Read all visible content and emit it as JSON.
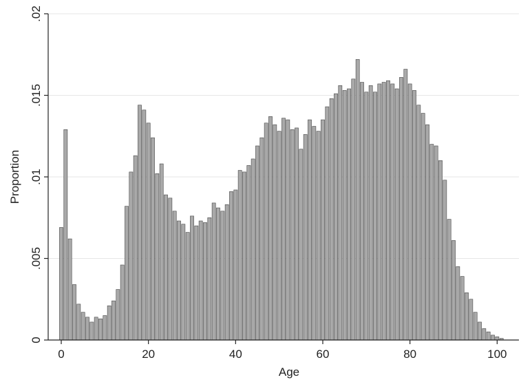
{
  "chart_data": {
    "type": "bar",
    "subtype": "histogram",
    "title": "",
    "xlabel": "Age",
    "ylabel": "Proportion",
    "xlim": [
      -3,
      105
    ],
    "ylim": [
      0,
      0.02
    ],
    "xticks": [
      0,
      20,
      40,
      60,
      80,
      100
    ],
    "xtick_labels": [
      "0",
      "20",
      "40",
      "60",
      "80",
      "100"
    ],
    "yticks": [
      0,
      0.005,
      0.01,
      0.015,
      0.02
    ],
    "ytick_labels": [
      "0",
      ".005",
      ".01",
      ".015",
      ".02"
    ],
    "grid": true,
    "bin_width": 1,
    "x": [
      0,
      1,
      2,
      3,
      4,
      5,
      6,
      7,
      8,
      9,
      10,
      11,
      12,
      13,
      14,
      15,
      16,
      17,
      18,
      19,
      20,
      21,
      22,
      23,
      24,
      25,
      26,
      27,
      28,
      29,
      30,
      31,
      32,
      33,
      34,
      35,
      36,
      37,
      38,
      39,
      40,
      41,
      42,
      43,
      44,
      45,
      46,
      47,
      48,
      49,
      50,
      51,
      52,
      53,
      54,
      55,
      56,
      57,
      58,
      59,
      60,
      61,
      62,
      63,
      64,
      65,
      66,
      67,
      68,
      69,
      70,
      71,
      72,
      73,
      74,
      75,
      76,
      77,
      78,
      79,
      80,
      81,
      82,
      83,
      84,
      85,
      86,
      87,
      88,
      89,
      90,
      91,
      92,
      93,
      94,
      95,
      96,
      97,
      98,
      99,
      100,
      101
    ],
    "values": [
      0.0069,
      0.0129,
      0.0062,
      0.0034,
      0.0022,
      0.0017,
      0.0014,
      0.0011,
      0.0014,
      0.0013,
      0.0015,
      0.0021,
      0.0024,
      0.0031,
      0.0046,
      0.0082,
      0.0103,
      0.0113,
      0.0144,
      0.0141,
      0.0133,
      0.0124,
      0.0102,
      0.0108,
      0.0089,
      0.0087,
      0.0079,
      0.0073,
      0.0071,
      0.0066,
      0.0076,
      0.007,
      0.0073,
      0.0072,
      0.0075,
      0.0084,
      0.0081,
      0.0079,
      0.0083,
      0.0091,
      0.0092,
      0.0104,
      0.0103,
      0.0107,
      0.0111,
      0.0119,
      0.0124,
      0.0133,
      0.0137,
      0.0132,
      0.0128,
      0.0136,
      0.0135,
      0.0129,
      0.013,
      0.0117,
      0.0126,
      0.0135,
      0.0131,
      0.0128,
      0.0135,
      0.0143,
      0.0148,
      0.0151,
      0.0156,
      0.0153,
      0.0154,
      0.016,
      0.0172,
      0.0158,
      0.0152,
      0.0156,
      0.0152,
      0.0157,
      0.0158,
      0.0159,
      0.0157,
      0.0154,
      0.0161,
      0.0166,
      0.0157,
      0.0153,
      0.0144,
      0.0139,
      0.0132,
      0.012,
      0.0119,
      0.011,
      0.0098,
      0.0074,
      0.0061,
      0.0045,
      0.0039,
      0.0029,
      0.0025,
      0.0017,
      0.0011,
      0.0007,
      0.0005,
      0.0003,
      0.0002,
      0.0001
    ]
  }
}
